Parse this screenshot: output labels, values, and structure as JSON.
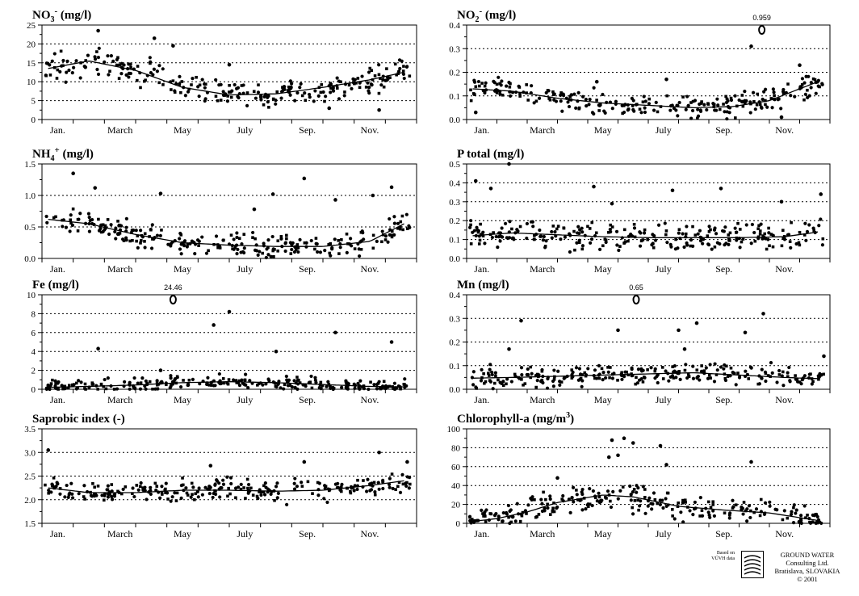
{
  "chart_data": [
    {
      "type": "scatter",
      "title": "NO3- (mg/l)",
      "title_parts": {
        "base": "NO",
        "sub": "3",
        "sup": "-",
        "unit": " (mg/l)"
      },
      "months": [
        "Jan.",
        "March",
        "May",
        "July",
        "Sep.",
        "Nov."
      ],
      "ylim": [
        0,
        25
      ],
      "yticks": [
        0,
        5,
        10,
        15,
        20,
        25
      ],
      "ytick_labels": [
        "0",
        "5",
        "10",
        "15",
        "20",
        "25"
      ],
      "dotted_grid_y": [
        5,
        10,
        15,
        20
      ],
      "trend": [
        [
          0.2,
          13.5
        ],
        [
          1.5,
          15.5
        ],
        [
          3.0,
          13.0
        ],
        [
          4.5,
          8.5
        ],
        [
          6.0,
          6.5
        ],
        [
          7.5,
          6.8
        ],
        [
          9.0,
          8.5
        ],
        [
          10.5,
          10.5
        ],
        [
          11.6,
          12.5
        ]
      ],
      "scatter_level": 2.6,
      "outliers": [
        [
          1.8,
          23.5
        ],
        [
          3.6,
          21.5
        ],
        [
          4.2,
          19.5
        ],
        [
          6.0,
          14.5
        ],
        [
          9.2,
          3.0
        ],
        [
          10.8,
          2.5
        ]
      ],
      "off_scale": null
    },
    {
      "type": "scatter",
      "title": "NO2- (mg/l)",
      "title_parts": {
        "base": "NO",
        "sub": "2",
        "sup": "-",
        "unit": " (mg/l)"
      },
      "months": [
        "Jan.",
        "March",
        "May",
        "July",
        "Sep.",
        "Nov."
      ],
      "ylim": [
        0,
        0.4
      ],
      "yticks": [
        0,
        0.1,
        0.2,
        0.3,
        0.4
      ],
      "ytick_labels": [
        "0.0",
        "0.1",
        "0.2",
        "0.3",
        "0.4"
      ],
      "dotted_grid_y": [
        0.1,
        0.2,
        0.3
      ],
      "trend": [
        [
          0.2,
          0.13
        ],
        [
          1.5,
          0.12
        ],
        [
          3.0,
          0.09
        ],
        [
          4.5,
          0.07
        ],
        [
          6.0,
          0.06
        ],
        [
          7.5,
          0.05
        ],
        [
          8.8,
          0.055
        ],
        [
          10.0,
          0.08
        ],
        [
          11.6,
          0.16
        ]
      ],
      "scatter_level": 0.035,
      "outliers": [
        [
          0.3,
          0.03
        ],
        [
          4.3,
          0.16
        ],
        [
          6.6,
          0.17
        ],
        [
          9.4,
          0.31
        ],
        [
          11.0,
          0.23
        ],
        [
          10.4,
          0.01
        ]
      ],
      "off_scale": {
        "label": "0.959",
        "x": 9.75
      }
    },
    {
      "type": "scatter",
      "title": "NH4+ (mg/l)",
      "title_parts": {
        "base": "NH",
        "sub": "4",
        "sup": "+",
        "unit": " (mg/l)"
      },
      "months": [
        "Jan.",
        "March",
        "May",
        "July",
        "Sep.",
        "Nov."
      ],
      "ylim": [
        0,
        1.5
      ],
      "yticks": [
        0,
        0.5,
        1.0,
        1.5
      ],
      "ytick_labels": [
        "0.0",
        "0.5",
        "1.0",
        "1.5"
      ],
      "dotted_grid_y": [
        0.5,
        1.0
      ],
      "trend": [
        [
          0.2,
          0.62
        ],
        [
          1.5,
          0.55
        ],
        [
          3.0,
          0.38
        ],
        [
          4.5,
          0.25
        ],
        [
          6.0,
          0.21
        ],
        [
          7.5,
          0.19
        ],
        [
          9.0,
          0.19
        ],
        [
          10.5,
          0.27
        ],
        [
          11.6,
          0.55
        ]
      ],
      "scatter_level": 0.14,
      "outliers": [
        [
          1.0,
          1.35
        ],
        [
          1.7,
          1.12
        ],
        [
          3.8,
          1.03
        ],
        [
          6.8,
          0.78
        ],
        [
          7.4,
          1.02
        ],
        [
          8.4,
          1.27
        ],
        [
          9.4,
          0.93
        ],
        [
          10.6,
          1.0
        ],
        [
          11.2,
          1.13
        ]
      ],
      "off_scale": null
    },
    {
      "type": "scatter",
      "title": "P total (mg/l)",
      "title_parts": {
        "base": "P total",
        "sub": "",
        "sup": "",
        "unit": " (mg/l)"
      },
      "months": [
        "Jan.",
        "March",
        "May",
        "July",
        "Sep.",
        "Nov."
      ],
      "ylim": [
        0,
        0.5
      ],
      "yticks": [
        0,
        0.1,
        0.2,
        0.3,
        0.4,
        0.5
      ],
      "ytick_labels": [
        "0.0",
        "0.1",
        "0.2",
        "0.3",
        "0.4",
        "0.5"
      ],
      "dotted_grid_y": [
        0.1,
        0.2,
        0.3,
        0.4
      ],
      "trend": [
        [
          0.2,
          0.12
        ],
        [
          1.5,
          0.135
        ],
        [
          3.0,
          0.125
        ],
        [
          4.5,
          0.115
        ],
        [
          6.0,
          0.11
        ],
        [
          7.5,
          0.11
        ],
        [
          9.0,
          0.11
        ],
        [
          10.5,
          0.115
        ],
        [
          11.6,
          0.14
        ]
      ],
      "scatter_level": 0.05,
      "outliers": [
        [
          0.3,
          0.41
        ],
        [
          0.8,
          0.37
        ],
        [
          1.4,
          0.5
        ],
        [
          4.2,
          0.38
        ],
        [
          4.8,
          0.29
        ],
        [
          6.8,
          0.36
        ],
        [
          8.4,
          0.37
        ],
        [
          10.4,
          0.3
        ],
        [
          11.7,
          0.34
        ]
      ],
      "off_scale": null
    },
    {
      "type": "scatter",
      "title": "Fe (mg/l)",
      "title_parts": {
        "base": "Fe",
        "sub": "",
        "sup": "",
        "unit": " (mg/l)"
      },
      "months": [
        "Jan.",
        "March",
        "May",
        "July",
        "Sep.",
        "Nov."
      ],
      "ylim": [
        0,
        10
      ],
      "yticks": [
        0,
        2,
        4,
        6,
        8,
        10
      ],
      "ytick_labels": [
        "0",
        "2",
        "4",
        "6",
        "8",
        "10"
      ],
      "dotted_grid_y": [
        2,
        4,
        6,
        8
      ],
      "trend": [
        [
          0.2,
          0.2
        ],
        [
          1.5,
          0.3
        ],
        [
          3.0,
          0.45
        ],
        [
          4.5,
          0.7
        ],
        [
          6.0,
          0.8
        ],
        [
          7.5,
          0.7
        ],
        [
          9.0,
          0.5
        ],
        [
          10.5,
          0.3
        ],
        [
          11.6,
          0.25
        ]
      ],
      "scatter_level": 0.5,
      "outliers": [
        [
          1.8,
          4.3
        ],
        [
          5.5,
          6.8
        ],
        [
          6.0,
          8.2
        ],
        [
          7.5,
          4.0
        ],
        [
          9.4,
          6.0
        ],
        [
          11.2,
          5.0
        ],
        [
          3.8,
          2.0
        ]
      ],
      "off_scale": {
        "label": "24.46",
        "x": 4.2
      }
    },
    {
      "type": "scatter",
      "title": "Mn (mg/l)",
      "title_parts": {
        "base": "Mn",
        "sub": "",
        "sup": "",
        "unit": " (mg/l)"
      },
      "months": [
        "Jan.",
        "March",
        "May",
        "July",
        "Sep.",
        "Nov."
      ],
      "ylim": [
        0,
        0.4
      ],
      "yticks": [
        0,
        0.1,
        0.2,
        0.3,
        0.4
      ],
      "ytick_labels": [
        "0.0",
        "0.1",
        "0.2",
        "0.3",
        "0.4"
      ],
      "dotted_grid_y": [
        0.1,
        0.2,
        0.3
      ],
      "trend": [
        [
          0.2,
          0.047
        ],
        [
          1.5,
          0.05
        ],
        [
          3.0,
          0.055
        ],
        [
          4.5,
          0.06
        ],
        [
          6.0,
          0.065
        ],
        [
          7.5,
          0.07
        ],
        [
          9.0,
          0.06
        ],
        [
          10.5,
          0.05
        ],
        [
          11.6,
          0.045
        ]
      ],
      "scatter_level": 0.03,
      "outliers": [
        [
          1.8,
          0.29
        ],
        [
          1.4,
          0.17
        ],
        [
          5.0,
          0.25
        ],
        [
          7.0,
          0.25
        ],
        [
          7.2,
          0.17
        ],
        [
          7.6,
          0.28
        ],
        [
          9.2,
          0.24
        ],
        [
          9.8,
          0.32
        ],
        [
          11.8,
          0.14
        ]
      ],
      "off_scale": {
        "label": "0.65",
        "x": 5.6
      }
    },
    {
      "type": "scatter",
      "title": "Saprobic index (-)",
      "title_parts": {
        "base": "Saprobic index",
        "sub": "",
        "sup": "",
        "unit": " (-)"
      },
      "months": [
        "Jan.",
        "March",
        "May",
        "July",
        "Sep.",
        "Nov."
      ],
      "ylim": [
        1.5,
        3.5
      ],
      "yticks": [
        1.5,
        2.0,
        2.5,
        3.0,
        3.5
      ],
      "ytick_labels": [
        "1.5",
        "2.0",
        "2.5",
        "3.0",
        "3.5"
      ],
      "dotted_grid_y": [
        2.0,
        2.5,
        3.0
      ],
      "trend": [
        [
          0.2,
          2.25
        ],
        [
          1.5,
          2.15
        ],
        [
          3.0,
          2.15
        ],
        [
          4.5,
          2.2
        ],
        [
          6.0,
          2.2
        ],
        [
          7.5,
          2.18
        ],
        [
          9.0,
          2.2
        ],
        [
          10.5,
          2.3
        ],
        [
          11.6,
          2.4
        ]
      ],
      "scatter_level": 0.16,
      "outliers": [
        [
          0.2,
          3.05
        ],
        [
          5.4,
          2.72
        ],
        [
          8.4,
          2.8
        ],
        [
          10.8,
          3.0
        ],
        [
          11.7,
          2.8
        ]
      ],
      "off_scale": null
    },
    {
      "type": "scatter",
      "title": "Chlorophyll-a (mg/m3)",
      "title_parts": {
        "base": "Chlorophyll-a",
        "sub": "",
        "sup": "",
        "unit": " (mg/m",
        "unit_sup": "3",
        "unit_end": ")"
      },
      "months": [
        "Jan.",
        "March",
        "May",
        "July",
        "Sep.",
        "Nov."
      ],
      "ylim": [
        0,
        100
      ],
      "yticks": [
        0,
        20,
        40,
        60,
        80,
        100
      ],
      "ytick_labels": [
        "0",
        "20",
        "40",
        "60",
        "80",
        "100"
      ],
      "dotted_grid_y": [
        20,
        40,
        60,
        80
      ],
      "trend": [
        [
          0.2,
          2
        ],
        [
          1.0,
          5
        ],
        [
          2.0,
          12
        ],
        [
          3.0,
          22
        ],
        [
          4.5,
          30
        ],
        [
          5.5,
          28
        ],
        [
          7.0,
          18
        ],
        [
          8.5,
          14
        ],
        [
          10.0,
          11
        ],
        [
          11.6,
          3
        ]
      ],
      "scatter_level": 10,
      "outliers": [
        [
          4.8,
          88
        ],
        [
          5.2,
          90
        ],
        [
          5.5,
          85
        ],
        [
          6.4,
          82
        ],
        [
          4.7,
          70
        ],
        [
          5.0,
          72
        ],
        [
          6.6,
          62
        ],
        [
          9.4,
          65
        ],
        [
          3.0,
          48
        ]
      ],
      "off_scale": null
    }
  ],
  "footer": {
    "based_line1": "Based on",
    "based_line2": "VÚVH data",
    "company_line1": "GROUND WATER",
    "company_line2": "Consulting Ltd.",
    "company_line3": "Bratislava, SLOVAKIA",
    "copyright": "© 2001"
  }
}
